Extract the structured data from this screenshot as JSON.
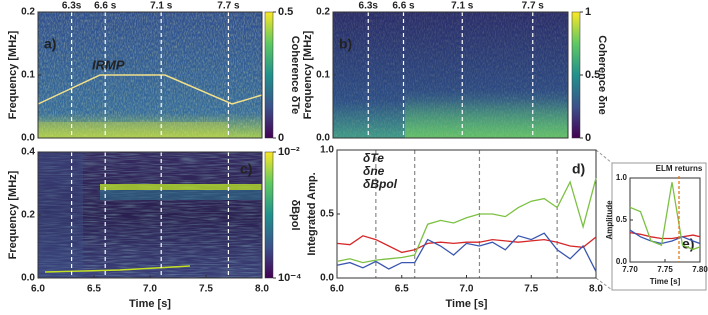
{
  "chart_data": [
    {
      "type": "heatmap",
      "panel_label": "a)",
      "ylabel": "Frequency [MHz]",
      "xlim": [
        6,
        8
      ],
      "ylim": [
        0,
        0.2
      ],
      "yticks": [
        {
          "value": 0,
          "label": "0.0"
        },
        0.1,
        0.2
      ],
      "colorbar_label": "Coherence δTe",
      "clim": [
        0,
        0.5
      ],
      "cticks": [
        0,
        0.5
      ],
      "annotation": "IRMP",
      "time_markers": [
        {
          "value": 6.3,
          "label": "6.3s",
          "color": "#c0392b"
        },
        {
          "value": 6.6,
          "label": "6.6 s",
          "color": "#4a5aa8"
        },
        {
          "value": 7.1,
          "label": "7.1 s",
          "color": "#7cb342"
        },
        {
          "value": 7.7,
          "label": "7.7 s",
          "color": "#7b3fa0"
        }
      ]
    },
    {
      "type": "heatmap",
      "panel_label": "b)",
      "ylabel": "Frequency [MHz]",
      "xlim": [
        6,
        8
      ],
      "ylim": [
        0,
        0.2
      ],
      "yticks": [
        {
          "value": 0,
          "label": "0.0"
        },
        0.1,
        0.2
      ],
      "colorbar_label": "Coherence δne",
      "clim": [
        0,
        1
      ],
      "cticks": [
        0,
        0.5,
        1
      ]
    },
    {
      "type": "heatmap",
      "panel_label": "c)",
      "ylabel": "Frequency [MHz]",
      "xlabel": "Time [s]",
      "xlim": [
        6,
        8
      ],
      "ylim": [
        0,
        0.4
      ],
      "xticks": [
        {
          "value": 6,
          "label": "6.0"
        },
        6.5,
        {
          "value": 7,
          "label": "7.0"
        },
        7.5,
        {
          "value": 8,
          "label": "8.0"
        }
      ],
      "yticks": [
        {
          "value": 0,
          "label": "0.0"
        },
        0.2,
        0.4
      ],
      "colorbar_label": "δBpol",
      "log": true,
      "clim": [
        0.0001,
        0.01
      ],
      "cticks": [
        {
          "value": 0.0001,
          "label": "10⁻⁴"
        },
        {
          "value": 0.01,
          "label": "10⁻²"
        }
      ]
    },
    {
      "type": "line",
      "panel_label": "d)",
      "ylabel": "Integrated Amp.",
      "xlabel": "Time [s]",
      "xlim": [
        6,
        8
      ],
      "ylim": [
        0,
        1
      ],
      "xticks": [
        {
          "value": 6,
          "label": "6.0"
        },
        6.5,
        {
          "value": 7,
          "label": "7.0"
        },
        7.5,
        {
          "value": 8,
          "label": "8.0"
        }
      ],
      "yticks": [
        {
          "value": 0,
          "label": "0.0"
        },
        0.5,
        {
          "value": 1,
          "label": "1.0"
        }
      ],
      "x": [
        6.0,
        6.1,
        6.2,
        6.3,
        6.4,
        6.5,
        6.6,
        6.7,
        6.8,
        6.9,
        7.0,
        7.1,
        7.2,
        7.3,
        7.4,
        7.5,
        7.6,
        7.7,
        7.8,
        7.9,
        8.0
      ],
      "series": [
        {
          "name": "δTe",
          "color": "#d62728",
          "values": [
            0.27,
            0.26,
            0.33,
            0.3,
            0.25,
            0.2,
            0.22,
            0.27,
            0.28,
            0.27,
            0.28,
            0.28,
            0.3,
            0.29,
            0.28,
            0.29,
            0.3,
            0.28,
            0.25,
            0.24,
            0.32
          ]
        },
        {
          "name": "δne",
          "color": "#3a56b0",
          "values": [
            0.1,
            0.12,
            0.08,
            0.13,
            0.07,
            0.12,
            0.12,
            0.3,
            0.25,
            0.18,
            0.27,
            0.25,
            0.28,
            0.22,
            0.33,
            0.3,
            0.35,
            0.22,
            0.15,
            0.25,
            0.05
          ]
        },
        {
          "name": "δBpol",
          "color": "#7cc142",
          "values": [
            0.13,
            0.15,
            0.12,
            0.14,
            0.15,
            0.16,
            0.18,
            0.42,
            0.45,
            0.43,
            0.47,
            0.5,
            0.5,
            0.48,
            0.55,
            0.6,
            0.62,
            0.55,
            0.75,
            0.4,
            0.78
          ]
        }
      ]
    },
    {
      "type": "line",
      "panel_label": "e)",
      "ylabel": "Amplitude",
      "xlabel": "Time [s]",
      "xlim": [
        7.7,
        7.8
      ],
      "ylim": [
        0,
        1
      ],
      "xticks": [
        {
          "value": 7.7,
          "label": "7.70"
        },
        7.75,
        {
          "value": 7.8,
          "label": "7.80"
        }
      ],
      "yticks": [
        {
          "value": 0,
          "label": "0.0"
        },
        0.5,
        {
          "value": 1,
          "label": "1.0"
        }
      ],
      "annotation": {
        "value": 7.77,
        "label": "ELM returns"
      },
      "x": [
        7.7,
        7.715,
        7.73,
        7.745,
        7.76,
        7.775,
        7.79,
        7.8
      ],
      "series": [
        {
          "color": "#d62728",
          "values": [
            0.35,
            0.33,
            0.3,
            0.28,
            0.28,
            0.3,
            0.32,
            0.3
          ]
        },
        {
          "color": "#3a56b0",
          "values": [
            0.38,
            0.3,
            0.25,
            0.22,
            0.25,
            0.3,
            0.25,
            0.22
          ]
        },
        {
          "color": "#7cc142",
          "values": [
            0.65,
            0.6,
            0.25,
            0.2,
            0.95,
            0.2,
            0.15,
            0.18
          ]
        }
      ]
    }
  ]
}
